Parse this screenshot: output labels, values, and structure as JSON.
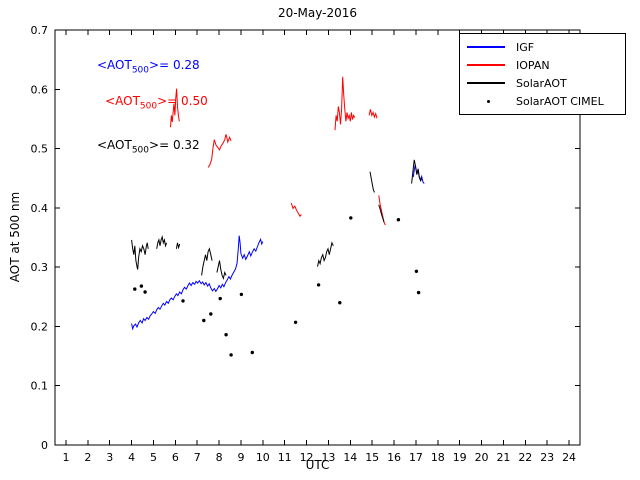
{
  "chart_data": {
    "type": "line",
    "title": "20-May-2016",
    "xlabel": "UTC",
    "ylabel": "AOT at 500 nm",
    "xlim": [
      0.5,
      24.5
    ],
    "ylim": [
      0,
      0.7
    ],
    "grid": false,
    "legend_position": "northeast",
    "xticks": [
      1,
      2,
      3,
      4,
      5,
      6,
      7,
      8,
      9,
      10,
      11,
      12,
      13,
      14,
      15,
      16,
      17,
      18,
      19,
      20,
      21,
      22,
      23,
      24
    ],
    "yticks": [
      0,
      0.1,
      0.2,
      0.3,
      0.4,
      0.5,
      0.6,
      0.7
    ],
    "ytick_labels": [
      "0",
      "0.1",
      "0.2",
      "0.3",
      "0.4",
      "0.5",
      "0.6",
      "0.7"
    ],
    "annotations": [
      {
        "name": "mean-aot-igf",
        "pre": "<AOT",
        "sub": "500",
        "post": ">= 0.28",
        "color": "#0000ff",
        "x": 2.42,
        "y": 0.64
      },
      {
        "name": "mean-aot-iopan",
        "pre": "<AOT",
        "sub": "500",
        "post": ">= 0.50",
        "color": "#ff0000",
        "x": 2.79,
        "y": 0.578
      },
      {
        "name": "mean-aot-solaraot",
        "pre": "<AOT",
        "sub": "500",
        "post": ">= 0.32",
        "color": "#000000",
        "x": 2.42,
        "y": 0.505
      }
    ],
    "series": [
      {
        "name": "IGF",
        "color": "#0000ff",
        "type": "line",
        "segments": [
          [
            [
              4.0,
              0.205
            ],
            [
              4.05,
              0.196
            ],
            [
              4.1,
              0.201
            ],
            [
              4.18,
              0.204
            ],
            [
              4.25,
              0.199
            ],
            [
              4.32,
              0.206
            ],
            [
              4.4,
              0.21
            ],
            [
              4.48,
              0.206
            ],
            [
              4.55,
              0.213
            ],
            [
              4.62,
              0.21
            ],
            [
              4.7,
              0.215
            ],
            [
              4.78,
              0.212
            ],
            [
              4.85,
              0.218
            ],
            [
              4.92,
              0.221
            ],
            [
              5.0,
              0.225
            ],
            [
              5.08,
              0.222
            ],
            [
              5.15,
              0.228
            ],
            [
              5.22,
              0.232
            ],
            [
              5.3,
              0.229
            ],
            [
              5.38,
              0.235
            ],
            [
              5.45,
              0.239
            ],
            [
              5.52,
              0.236
            ],
            [
              5.6,
              0.242
            ],
            [
              5.68,
              0.239
            ],
            [
              5.75,
              0.245
            ],
            [
              5.82,
              0.248
            ],
            [
              5.9,
              0.245
            ],
            [
              5.98,
              0.251
            ],
            [
              6.05,
              0.255
            ],
            [
              6.12,
              0.252
            ],
            [
              6.2,
              0.258
            ],
            [
              6.28,
              0.255
            ],
            [
              6.35,
              0.262
            ],
            [
              6.42,
              0.266
            ],
            [
              6.5,
              0.263
            ],
            [
              6.58,
              0.269
            ],
            [
              6.65,
              0.273
            ],
            [
              6.72,
              0.269
            ],
            [
              6.8,
              0.274
            ],
            [
              6.88,
              0.271
            ],
            [
              6.95,
              0.276
            ],
            [
              7.02,
              0.273
            ],
            [
              7.1,
              0.277
            ],
            [
              7.18,
              0.272
            ],
            [
              7.25,
              0.275
            ],
            [
              7.32,
              0.27
            ],
            [
              7.4,
              0.274
            ],
            [
              7.48,
              0.268
            ],
            [
              7.55,
              0.272
            ],
            [
              7.62,
              0.265
            ],
            [
              7.7,
              0.26
            ],
            [
              7.78,
              0.264
            ],
            [
              7.85,
              0.259
            ],
            [
              7.92,
              0.263
            ],
            [
              8.0,
              0.269
            ],
            [
              8.08,
              0.265
            ],
            [
              8.15,
              0.271
            ],
            [
              8.22,
              0.267
            ],
            [
              8.3,
              0.274
            ],
            [
              8.38,
              0.279
            ],
            [
              8.45,
              0.284
            ],
            [
              8.52,
              0.28
            ],
            [
              8.6,
              0.287
            ],
            [
              8.68,
              0.292
            ],
            [
              8.75,
              0.297
            ],
            [
              8.82,
              0.306
            ],
            [
              8.88,
              0.331
            ],
            [
              8.92,
              0.353
            ],
            [
              8.96,
              0.341
            ],
            [
              9.0,
              0.323
            ],
            [
              9.08,
              0.315
            ],
            [
              9.15,
              0.321
            ],
            [
              9.22,
              0.313
            ],
            [
              9.3,
              0.319
            ],
            [
              9.38,
              0.326
            ],
            [
              9.45,
              0.319
            ],
            [
              9.52,
              0.325
            ],
            [
              9.6,
              0.331
            ],
            [
              9.68,
              0.327
            ],
            [
              9.75,
              0.334
            ],
            [
              9.82,
              0.341
            ],
            [
              9.9,
              0.347
            ],
            [
              9.95,
              0.339
            ],
            [
              10.0,
              0.343
            ]
          ],
          [
            [
              16.88,
              0.452
            ],
            [
              16.92,
              0.463
            ],
            [
              16.96,
              0.472
            ],
            [
              17.0,
              0.466
            ],
            [
              17.05,
              0.457
            ],
            [
              17.1,
              0.464
            ],
            [
              17.15,
              0.452
            ],
            [
              17.2,
              0.447
            ],
            [
              17.26,
              0.453
            ],
            [
              17.32,
              0.444
            ],
            [
              17.38,
              0.441
            ]
          ]
        ]
      },
      {
        "name": "IOPAN",
        "color": "#ff0000",
        "type": "line",
        "segments": [
          [
            [
              5.78,
              0.536
            ],
            [
              5.82,
              0.556
            ],
            [
              5.86,
              0.545
            ],
            [
              5.9,
              0.561
            ],
            [
              5.94,
              0.576
            ],
            [
              5.98,
              0.556
            ],
            [
              6.02,
              0.586
            ],
            [
              6.06,
              0.601
            ],
            [
              6.1,
              0.571
            ],
            [
              6.14,
              0.556
            ],
            [
              6.18,
              0.546
            ]
          ],
          [
            [
              7.5,
              0.468
            ],
            [
              7.58,
              0.473
            ],
            [
              7.66,
              0.481
            ],
            [
              7.72,
              0.5
            ],
            [
              7.78,
              0.515
            ],
            [
              7.86,
              0.506
            ],
            [
              7.94,
              0.502
            ],
            [
              8.02,
              0.498
            ],
            [
              8.1,
              0.505
            ],
            [
              8.18,
              0.509
            ],
            [
              8.26,
              0.515
            ],
            [
              8.32,
              0.524
            ],
            [
              8.4,
              0.511
            ],
            [
              8.48,
              0.519
            ],
            [
              8.55,
              0.513
            ]
          ],
          [
            [
              11.3,
              0.408
            ],
            [
              11.38,
              0.399
            ],
            [
              11.46,
              0.403
            ],
            [
              11.54,
              0.396
            ],
            [
              11.62,
              0.391
            ],
            [
              11.7,
              0.386
            ],
            [
              11.76,
              0.389
            ]
          ],
          [
            [
              13.3,
              0.531
            ],
            [
              13.35,
              0.556
            ],
            [
              13.4,
              0.546
            ],
            [
              13.45,
              0.571
            ],
            [
              13.5,
              0.561
            ],
            [
              13.55,
              0.541
            ],
            [
              13.6,
              0.566
            ],
            [
              13.65,
              0.621
            ],
            [
              13.7,
              0.591
            ],
            [
              13.75,
              0.566
            ],
            [
              13.8,
              0.546
            ],
            [
              13.85,
              0.561
            ],
            [
              13.9,
              0.551
            ],
            [
              13.95,
              0.556
            ],
            [
              14.0,
              0.546
            ],
            [
              14.05,
              0.561
            ],
            [
              14.1,
              0.549
            ],
            [
              14.15,
              0.556
            ],
            [
              14.2,
              0.552
            ]
          ],
          [
            [
              14.86,
              0.556
            ],
            [
              14.92,
              0.566
            ],
            [
              14.98,
              0.556
            ],
            [
              15.04,
              0.561
            ],
            [
              15.1,
              0.553
            ],
            [
              15.16,
              0.559
            ],
            [
              15.22,
              0.551
            ]
          ],
          [
            [
              15.3,
              0.421
            ],
            [
              15.36,
              0.406
            ],
            [
              15.42,
              0.396
            ],
            [
              15.48,
              0.386
            ],
            [
              15.54,
              0.376
            ],
            [
              15.6,
              0.371
            ]
          ]
        ]
      },
      {
        "name": "SolarAOT",
        "color": "#000000",
        "type": "line",
        "segments": [
          [
            [
              4.0,
              0.346
            ],
            [
              4.05,
              0.331
            ],
            [
              4.1,
              0.321
            ],
            [
              4.15,
              0.336
            ],
            [
              4.2,
              0.311
            ],
            [
              4.25,
              0.301
            ],
            [
              4.28,
              0.296
            ],
            [
              4.32,
              0.316
            ],
            [
              4.38,
              0.331
            ],
            [
              4.44,
              0.326
            ],
            [
              4.5,
              0.336
            ],
            [
              4.56,
              0.331
            ],
            [
              4.62,
              0.321
            ],
            [
              4.68,
              0.336
            ],
            [
              4.72,
              0.341
            ],
            [
              4.76,
              0.331
            ]
          ],
          [
            [
              5.15,
              0.331
            ],
            [
              5.2,
              0.341
            ],
            [
              5.25,
              0.346
            ],
            [
              5.3,
              0.336
            ],
            [
              5.35,
              0.346
            ],
            [
              5.4,
              0.351
            ],
            [
              5.45,
              0.341
            ],
            [
              5.5,
              0.346
            ],
            [
              5.55,
              0.336
            ],
            [
              5.6,
              0.341
            ]
          ],
          [
            [
              6.05,
              0.331
            ],
            [
              6.1,
              0.341
            ],
            [
              6.15,
              0.333
            ],
            [
              6.2,
              0.339
            ]
          ],
          [
            [
              7.2,
              0.286
            ],
            [
              7.26,
              0.301
            ],
            [
              7.32,
              0.311
            ],
            [
              7.38,
              0.321
            ],
            [
              7.44,
              0.311
            ],
            [
              7.5,
              0.326
            ],
            [
              7.56,
              0.331
            ],
            [
              7.62,
              0.321
            ],
            [
              7.68,
              0.311
            ]
          ],
          [
            [
              7.9,
              0.291
            ],
            [
              7.96,
              0.301
            ],
            [
              8.02,
              0.311
            ],
            [
              8.08,
              0.296
            ],
            [
              8.14,
              0.286
            ],
            [
              8.2,
              0.281
            ],
            [
              8.26,
              0.291
            ],
            [
              8.32,
              0.286
            ]
          ],
          [
            [
              12.5,
              0.301
            ],
            [
              12.56,
              0.311
            ],
            [
              12.62,
              0.306
            ],
            [
              12.68,
              0.316
            ],
            [
              12.74,
              0.321
            ],
            [
              12.8,
              0.311
            ],
            [
              12.86,
              0.316
            ],
            [
              12.92,
              0.326
            ],
            [
              12.98,
              0.331
            ],
            [
              13.04,
              0.321
            ],
            [
              13.1,
              0.331
            ],
            [
              13.16,
              0.341
            ],
            [
              13.22,
              0.336
            ]
          ],
          [
            [
              14.9,
              0.461
            ],
            [
              14.95,
              0.451
            ],
            [
              15.0,
              0.441
            ],
            [
              15.05,
              0.431
            ],
            [
              15.1,
              0.426
            ]
          ],
          [
            [
              15.3,
              0.405
            ],
            [
              15.36,
              0.398
            ],
            [
              15.42,
              0.39
            ],
            [
              15.48,
              0.383
            ],
            [
              15.54,
              0.376
            ]
          ],
          [
            [
              16.8,
              0.441
            ],
            [
              16.86,
              0.461
            ],
            [
              16.92,
              0.481
            ],
            [
              16.98,
              0.471
            ],
            [
              17.04,
              0.456
            ],
            [
              17.1,
              0.466
            ],
            [
              17.16,
              0.451
            ],
            [
              17.22,
              0.446
            ],
            [
              17.28,
              0.451
            ]
          ]
        ]
      },
      {
        "name": "SolarAOT CIMEL",
        "color": "#000000",
        "type": "scatter",
        "points": [
          [
            4.15,
            0.263
          ],
          [
            4.45,
            0.268
          ],
          [
            4.62,
            0.258
          ],
          [
            6.35,
            0.243
          ],
          [
            7.3,
            0.21
          ],
          [
            7.62,
            0.221
          ],
          [
            8.05,
            0.247
          ],
          [
            8.32,
            0.186
          ],
          [
            8.55,
            0.152
          ],
          [
            9.02,
            0.254
          ],
          [
            9.52,
            0.156
          ],
          [
            11.5,
            0.207
          ],
          [
            12.55,
            0.27
          ],
          [
            13.52,
            0.24
          ],
          [
            14.02,
            0.383
          ],
          [
            16.2,
            0.38
          ],
          [
            17.02,
            0.293
          ],
          [
            17.12,
            0.257
          ]
        ]
      }
    ]
  }
}
